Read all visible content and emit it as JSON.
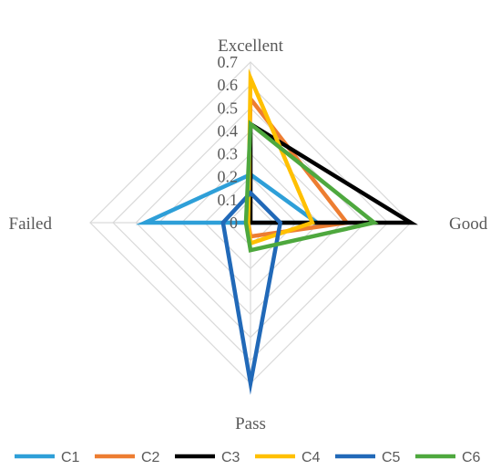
{
  "chart_data": {
    "type": "radar",
    "axes": [
      "Excellent",
      "Good",
      "Pass",
      "Failed"
    ],
    "rlim": [
      0,
      0.7
    ],
    "ticks": [
      "0",
      "0.1",
      "0.2",
      "0.3",
      "0.4",
      "0.5",
      "0.6",
      "0.7"
    ],
    "grid": true,
    "legend_position": "bottom",
    "series": [
      {
        "name": "C1",
        "color": "#2E9FD8",
        "values": [
          0.21,
          0.29,
          0.0,
          0.46
        ]
      },
      {
        "name": "C2",
        "color": "#ED7D31",
        "values": [
          0.54,
          0.42,
          0.06,
          0.01
        ]
      },
      {
        "name": "C3",
        "color": "#000000",
        "values": [
          0.43,
          0.7,
          0.0,
          0.0
        ]
      },
      {
        "name": "C4",
        "color": "#FFC000",
        "values": [
          0.63,
          0.27,
          0.09,
          0.01
        ]
      },
      {
        "name": "C5",
        "color": "#2169B8",
        "values": [
          0.13,
          0.13,
          0.7,
          0.12
        ]
      },
      {
        "name": "C6",
        "color": "#4EA83E",
        "values": [
          0.43,
          0.54,
          0.12,
          0.02
        ]
      }
    ]
  }
}
